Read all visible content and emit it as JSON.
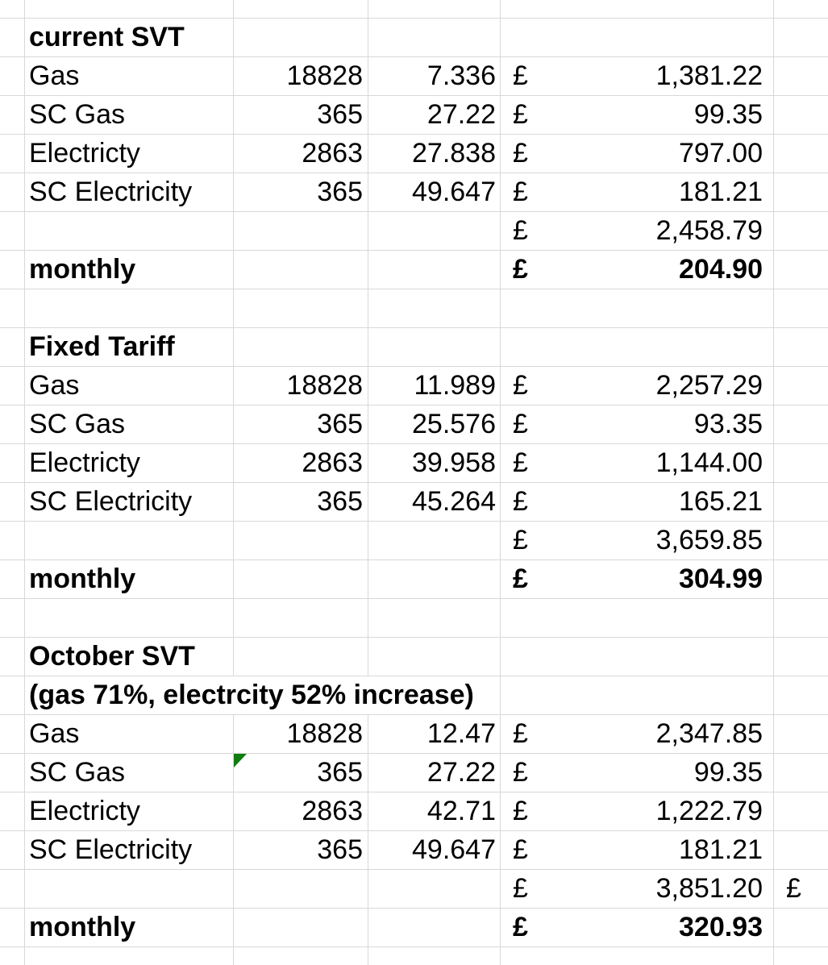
{
  "colors": {
    "background": "#ffffff",
    "gridline": "#d8d8d8",
    "text": "#000000",
    "error_indicator": "#107c10"
  },
  "sections": [
    {
      "title": "current SVT",
      "rows": [
        {
          "label": "Gas",
          "quantity": "18828",
          "rate": "7.336",
          "currency": "£",
          "amount": "1,381.22"
        },
        {
          "label": "SC Gas",
          "quantity": "365",
          "rate": "27.22",
          "currency": "£",
          "amount": "99.35"
        },
        {
          "label": "Electricty",
          "quantity": "2863",
          "rate": "27.838",
          "currency": "£",
          "amount": "797.00"
        },
        {
          "label": "SC Electricity",
          "quantity": "365",
          "rate": "49.647",
          "currency": "£",
          "amount": "181.21"
        }
      ],
      "total": {
        "currency": "£",
        "amount": "2,458.79"
      },
      "monthly": {
        "label": "monthly",
        "currency": "£",
        "amount": "204.90"
      }
    },
    {
      "title": "Fixed Tariff",
      "rows": [
        {
          "label": "Gas",
          "quantity": "18828",
          "rate": "11.989",
          "currency": "£",
          "amount": "2,257.29"
        },
        {
          "label": "SC Gas",
          "quantity": "365",
          "rate": "25.576",
          "currency": "£",
          "amount": "93.35"
        },
        {
          "label": "Electricty",
          "quantity": "2863",
          "rate": "39.958",
          "currency": "£",
          "amount": "1,144.00"
        },
        {
          "label": "SC Electricity",
          "quantity": "365",
          "rate": "45.264",
          "currency": "£",
          "amount": "165.21"
        }
      ],
      "total": {
        "currency": "£",
        "amount": "3,659.85"
      },
      "monthly": {
        "label": "monthly",
        "currency": "£",
        "amount": "304.99"
      }
    },
    {
      "title": "October SVT",
      "subtitle": "(gas 71%, electrcity 52% increase)",
      "rows": [
        {
          "label": "Gas",
          "quantity": "18828",
          "rate": "12.47",
          "currency": "£",
          "amount": "2,347.85"
        },
        {
          "label": "SC Gas",
          "quantity": "365",
          "rate": "27.22",
          "currency": "£",
          "amount": "99.35",
          "has_error_indicator": true
        },
        {
          "label": "Electricty",
          "quantity": "2863",
          "rate": "42.71",
          "currency": "£",
          "amount": "1,222.79"
        },
        {
          "label": "SC Electricity",
          "quantity": "365",
          "rate": "49.647",
          "currency": "£",
          "amount": "181.21"
        }
      ],
      "total": {
        "currency": "£",
        "amount": "3,851.20",
        "overflow_currency": "£"
      },
      "monthly": {
        "label": "monthly",
        "currency": "£",
        "amount": "320.93"
      }
    }
  ]
}
